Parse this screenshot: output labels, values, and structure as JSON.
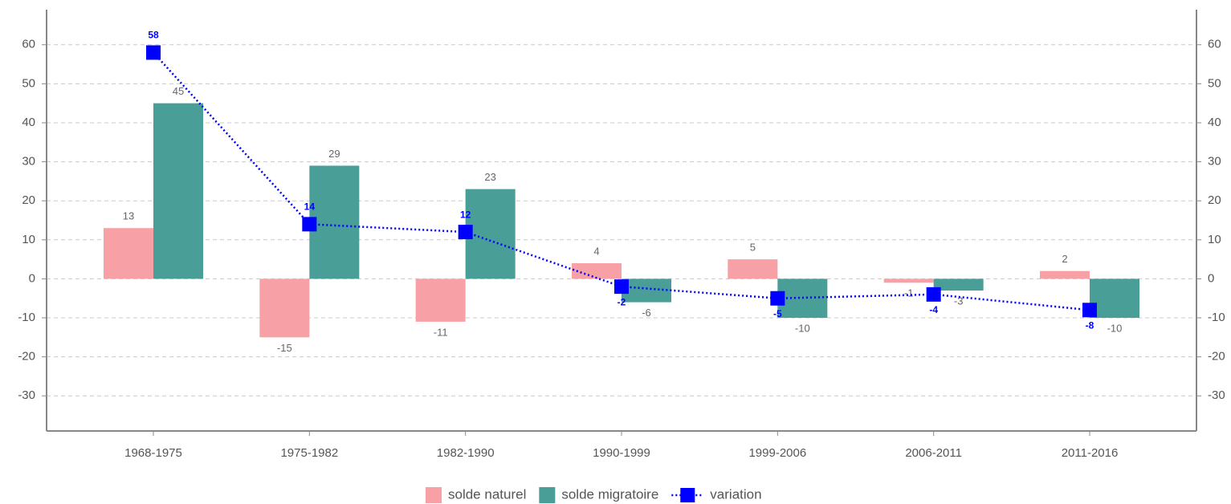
{
  "chart_data": {
    "type": "bar_line",
    "categories": [
      "1968-1975",
      "1975-1982",
      "1982-1990",
      "1990-1999",
      "1999-2006",
      "2006-2011",
      "2011-2016"
    ],
    "series": [
      {
        "name": "solde naturel",
        "color": "#f7a1a6",
        "type": "bar",
        "values": [
          13,
          -15,
          -11,
          4,
          5,
          -1,
          2
        ]
      },
      {
        "name": "solde migratoire",
        "color": "#4a9e98",
        "type": "bar",
        "values": [
          45,
          29,
          23,
          -6,
          -10,
          -3,
          -10
        ]
      },
      {
        "name": "variation",
        "color": "#0000ff",
        "type": "line",
        "axis": "y2",
        "values": [
          58,
          14,
          12,
          -2,
          -5,
          -4,
          -8
        ]
      }
    ],
    "ylim": [
      -39,
      69
    ],
    "yticks": [
      -30,
      -20,
      -10,
      0,
      10,
      20,
      30,
      40,
      50,
      60
    ],
    "y2lim": [
      -39,
      69
    ],
    "y2ticks": [
      -30,
      -20,
      -10,
      0,
      10,
      20,
      30,
      40,
      50,
      60
    ],
    "grid": true,
    "legend": "bottom"
  }
}
